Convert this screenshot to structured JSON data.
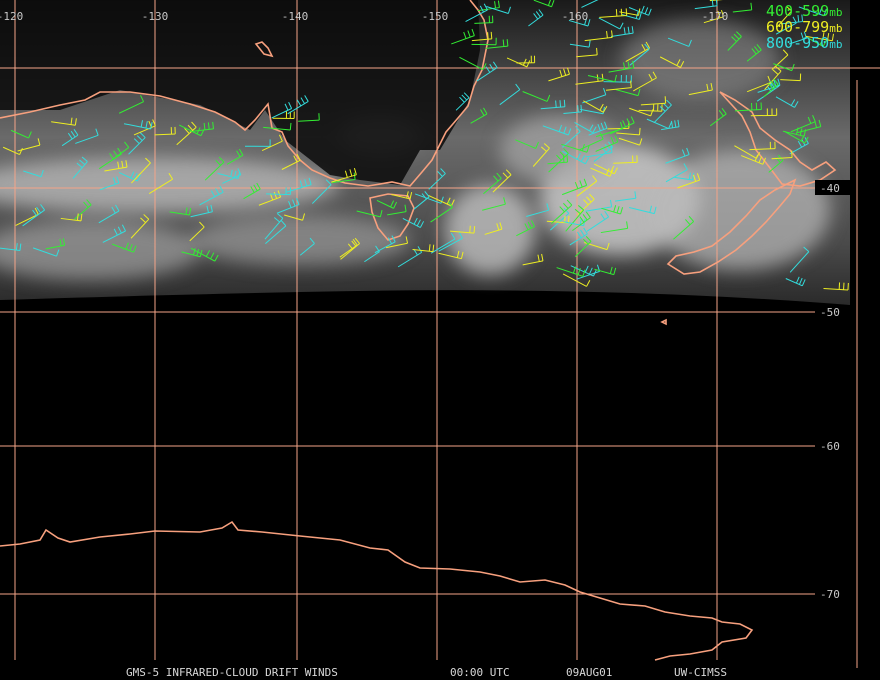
{
  "longitude_labels": [
    "-120",
    "-130",
    "-140",
    "-150",
    "-160",
    "-170"
  ],
  "latitude_labels": [
    "-40",
    "-50",
    "-60",
    "-70"
  ],
  "legend": [
    {
      "range": "400-599",
      "unit": "mb",
      "color": "#33ee33"
    },
    {
      "range": "600-799",
      "unit": "mb",
      "color": "#eeee22"
    },
    {
      "range": "800-950",
      "unit": "mb",
      "color": "#33dddd"
    }
  ],
  "footer": [
    "GMS-5 INFRARED-CLOUD DRIFT WINDS",
    "00:00 UTC",
    "09AUG01",
    "UW-CIMSS"
  ]
}
